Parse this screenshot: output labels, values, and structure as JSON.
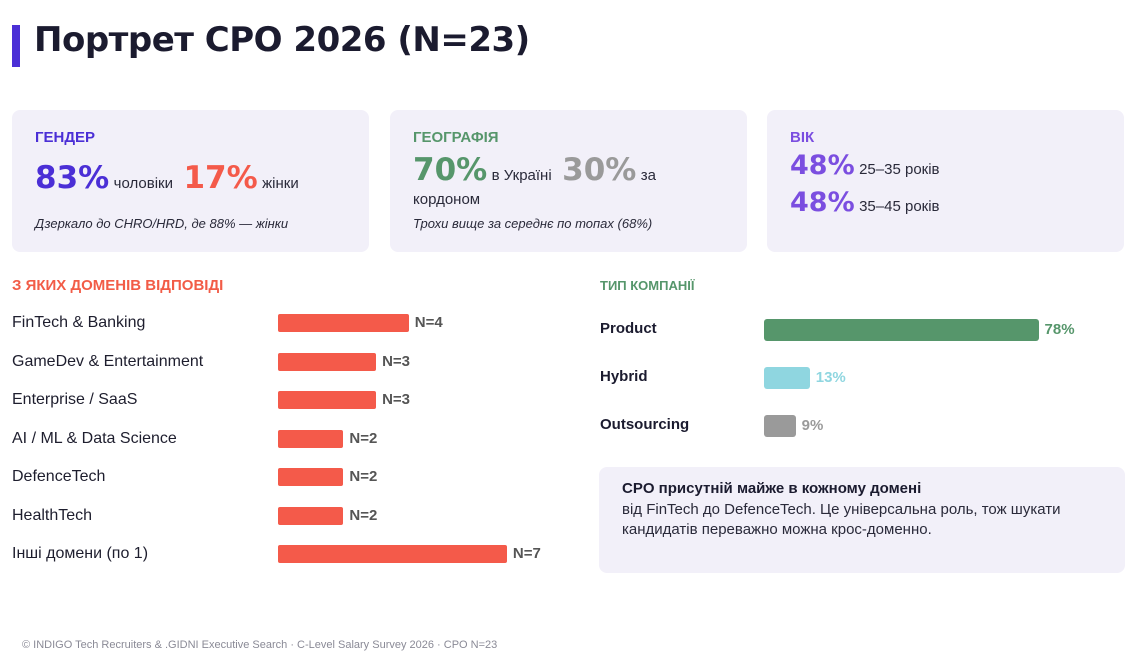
{
  "title": "Портрет CPO 2026 (N=23)",
  "cards": {
    "gender": {
      "label": "ГЕНДЕР",
      "male_pct": "83%",
      "male_text": "чоловіки",
      "female_pct": "17%",
      "female_text": "жінки",
      "note": "Дзеркало до CHRO/HRD, де 88% — жінки"
    },
    "geo": {
      "label": "ГЕОГРАФІЯ",
      "ua_pct": "70%",
      "ua_text": "в Україні",
      "abroad_pct": "30%",
      "abroad_text_1": "за",
      "abroad_text_2": "кордоном",
      "note": "Трохи вище за середнє по топах (68%)"
    },
    "age": {
      "label": "ВІК",
      "a1_pct": "48%",
      "a1_text": "25–35 років",
      "a2_pct": "48%",
      "a2_text": "35–45 років"
    }
  },
  "sections": {
    "domains_title": "З ЯКИХ ДОМЕНІВ ВІДПОВІДІ",
    "company_title": "ТИП КОМПАНІЇ"
  },
  "colors": {
    "accent_indigo": "#4b2fd6",
    "coral": "#f45a4a",
    "green": "#56966b",
    "purple": "#7b4ee0",
    "cyan": "#8fd6e0",
    "gray": "#9a9a9a"
  },
  "chart_data": [
    {
      "type": "bar",
      "orientation": "horizontal",
      "title": "З ЯКИХ ДОМЕНІВ ВІДПОВІДІ",
      "categories": [
        "FinTech & Banking",
        "GameDev & Entertainment",
        "Enterprise / SaaS",
        "AI / ML & Data Science",
        "DefenceTech",
        "HealthTech",
        "Інші домени (по 1)"
      ],
      "values": [
        4,
        3,
        3,
        2,
        2,
        2,
        7
      ],
      "value_labels": [
        "N=4",
        "N=3",
        "N=3",
        "N=2",
        "N=2",
        "N=2",
        "N=7"
      ],
      "color": "#f45a4a"
    },
    {
      "type": "bar",
      "orientation": "horizontal",
      "title": "ТИП КОМПАНІЇ",
      "categories": [
        "Product",
        "Hybrid",
        "Outsourcing"
      ],
      "values": [
        78,
        13,
        9
      ],
      "value_labels": [
        "78%",
        "13%",
        "9%"
      ],
      "colors": [
        "#56966b",
        "#8fd6e0",
        "#9a9a9a"
      ]
    }
  ],
  "callout": {
    "title": "CPO присутній майже в кожному домені",
    "body": "від FinTech до DefenceTech. Це універсальна роль, тож шукати кандидатів переважно можна крос-доменно."
  },
  "footer": "© INDIGO Tech Recruiters & .GIDNI Executive Search · C-Level Salary Survey 2026 · CPO N=23"
}
